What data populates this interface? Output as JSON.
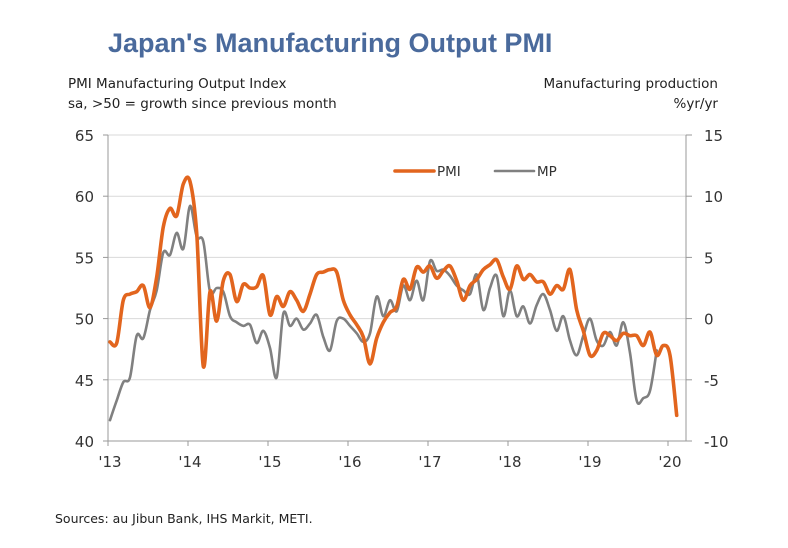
{
  "chart_data": {
    "type": "line",
    "title": "Japan's Manufacturing Output PMI",
    "left_axis_label": [
      "PMI Manufacturing Output Index",
      "sa, >50 = growth since previous month"
    ],
    "right_axis_label": [
      "Manufacturing production",
      "%yr/yr"
    ],
    "source": "Sources: au Jibun Bank, IHS Markit, METI.",
    "x_start": "2013-01",
    "x_end": "2020-03",
    "x_tick_labels": [
      "'13",
      "'14",
      "'15",
      "'16",
      "'17",
      "'18",
      "'19",
      "'20"
    ],
    "y_left": {
      "min": 40,
      "max": 65,
      "ticks": [
        40,
        45,
        50,
        55,
        60,
        65
      ]
    },
    "y_right": {
      "min": -10,
      "max": 15,
      "ticks": [
        -10,
        -5,
        0,
        5,
        10,
        15
      ]
    },
    "grid": true,
    "legend": {
      "position": "top-center",
      "entries": [
        {
          "name": "PMI",
          "color": "#e2651e"
        },
        {
          "name": "MP",
          "color": "#808080"
        }
      ]
    },
    "series": [
      {
        "name": "PMI",
        "axis": "left",
        "color": "#e2651e",
        "values": [
          48.1,
          48.0,
          51.5,
          52.0,
          52.2,
          52.7,
          50.9,
          53.4,
          57.5,
          59.0,
          58.4,
          61.0,
          61.2,
          57.0,
          46.1,
          52.2,
          49.8,
          53.1,
          53.6,
          51.4,
          52.8,
          52.5,
          52.6,
          53.5,
          50.3,
          51.8,
          51.0,
          52.2,
          51.5,
          50.6,
          52.0,
          53.6,
          53.8,
          54.0,
          53.8,
          51.5,
          50.3,
          49.5,
          48.5,
          46.3,
          48.4,
          49.7,
          50.5,
          51.0,
          53.2,
          52.4,
          54.2,
          53.8,
          54.3,
          53.3,
          53.9,
          54.3,
          53.1,
          51.5,
          52.7,
          53.2,
          54.0,
          54.4,
          54.8,
          53.4,
          52.4,
          54.3,
          53.2,
          53.6,
          53.0,
          53.0,
          52.0,
          52.7,
          52.4,
          54.0,
          50.7,
          49.0,
          47.0,
          47.4,
          48.8,
          48.6,
          48.2,
          48.8,
          48.6,
          48.6,
          47.8,
          48.9,
          47.0,
          47.8,
          47.0,
          42.1
        ]
      },
      {
        "name": "MP",
        "axis": "right",
        "color": "#808080",
        "values": [
          -8.3,
          -6.7,
          -5.2,
          -4.8,
          -1.4,
          -1.6,
          0.7,
          2.3,
          5.4,
          5.2,
          7.0,
          5.7,
          9.2,
          6.7,
          6.3,
          2.2,
          2.5,
          2.2,
          0.2,
          -0.3,
          -0.6,
          -0.5,
          -2.0,
          -1.0,
          -2.4,
          -4.8,
          0.4,
          -0.6,
          0.0,
          -0.9,
          -0.4,
          0.3,
          -1.5,
          -2.6,
          -0.2,
          0.0,
          -0.6,
          -1.2,
          -1.9,
          -1.2,
          1.8,
          0.2,
          1.5,
          0.6,
          2.7,
          1.5,
          3.1,
          1.5,
          4.7,
          3.9,
          4.0,
          3.5,
          2.7,
          2.3,
          2.0,
          3.6,
          0.7,
          2.5,
          3.5,
          0.2,
          2.3,
          0.2,
          1.0,
          -0.4,
          1.1,
          2.0,
          0.7,
          -1.0,
          0.2,
          -1.8,
          -3.0,
          -1.4,
          0.0,
          -1.8,
          -2.2,
          -1.1,
          -2.2,
          -0.3,
          -2.8,
          -6.7,
          -6.5,
          -5.9,
          -2.6
        ]
      }
    ]
  }
}
